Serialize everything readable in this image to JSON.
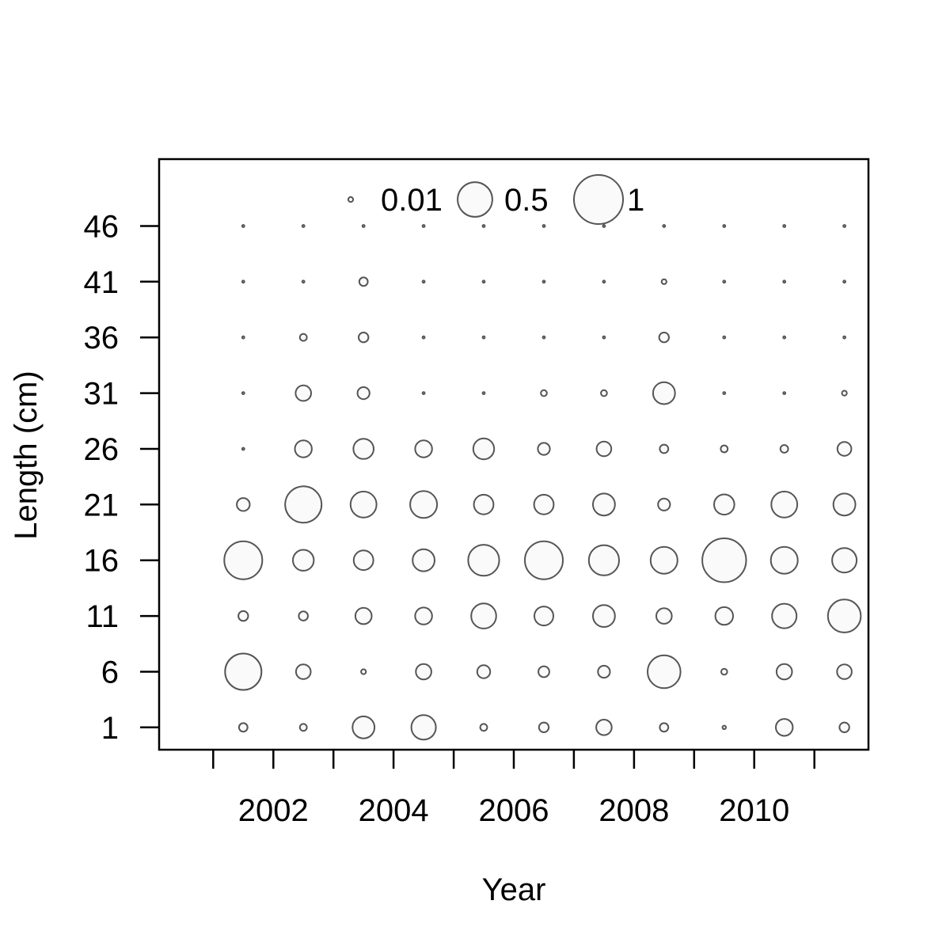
{
  "chart_data": {
    "type": "bubble",
    "xlabel": "Year",
    "ylabel": "Length (cm)",
    "x_tick_labels": [
      "2002",
      "2004",
      "2006",
      "2008",
      "2010"
    ],
    "x_tick_values": [
      2001,
      2002,
      2003,
      2004,
      2005,
      2006,
      2007,
      2008,
      2009,
      2010,
      2011
    ],
    "y_tick_labels": [
      "1",
      "6",
      "11",
      "16",
      "21",
      "26",
      "31",
      "36",
      "41",
      "46"
    ],
    "xlim": [
      2000.1,
      2011.9
    ],
    "ylim": [
      -1,
      52
    ],
    "legend": {
      "placement": "top-center",
      "entries": [
        {
          "label": "0.01",
          "value": 0.01
        },
        {
          "label": "0.5",
          "value": 0.5
        },
        {
          "label": "1",
          "value": 1
        }
      ]
    },
    "x": [
      2001.5,
      2002.5,
      2003.5,
      2004.5,
      2005.5,
      2006.5,
      2007.5,
      2008.5,
      2009.5,
      2010.5,
      2011.5
    ],
    "lengths": [
      1,
      6,
      11,
      16,
      21,
      26,
      31,
      36,
      41,
      46
    ],
    "values": [
      [
        0.03,
        0.02,
        0.2,
        0.25,
        0.02,
        0.04,
        0.1,
        0.03,
        0.005,
        0.12,
        0.04
      ],
      [
        0.55,
        0.09,
        0.01,
        0.1,
        0.07,
        0.05,
        0.06,
        0.45,
        0.015,
        0.1,
        0.09
      ],
      [
        0.04,
        0.035,
        0.11,
        0.12,
        0.26,
        0.15,
        0.2,
        0.1,
        0.13,
        0.25,
        0.45
      ],
      [
        0.6,
        0.18,
        0.16,
        0.2,
        0.4,
        0.6,
        0.38,
        0.3,
        0.8,
        0.3,
        0.25
      ],
      [
        0.07,
        0.55,
        0.28,
        0.3,
        0.16,
        0.16,
        0.2,
        0.06,
        0.17,
        0.28,
        0.2
      ],
      [
        0.002,
        0.12,
        0.17,
        0.12,
        0.18,
        0.06,
        0.09,
        0.03,
        0.02,
        0.025,
        0.08
      ],
      [
        0.002,
        0.1,
        0.06,
        0.002,
        0.002,
        0.015,
        0.015,
        0.2,
        0.002,
        0.002,
        0.01
      ],
      [
        0.002,
        0.02,
        0.04,
        0.002,
        0.002,
        0.002,
        0.002,
        0.04,
        0.002,
        0.002,
        0.002
      ],
      [
        0.002,
        0.002,
        0.03,
        0.002,
        0.002,
        0.002,
        0.002,
        0.01,
        0.002,
        0.002,
        0.002
      ],
      [
        0.002,
        0.002,
        0.002,
        0.002,
        0.002,
        0.002,
        0.002,
        0.002,
        0.002,
        0.002,
        0.002
      ]
    ]
  }
}
